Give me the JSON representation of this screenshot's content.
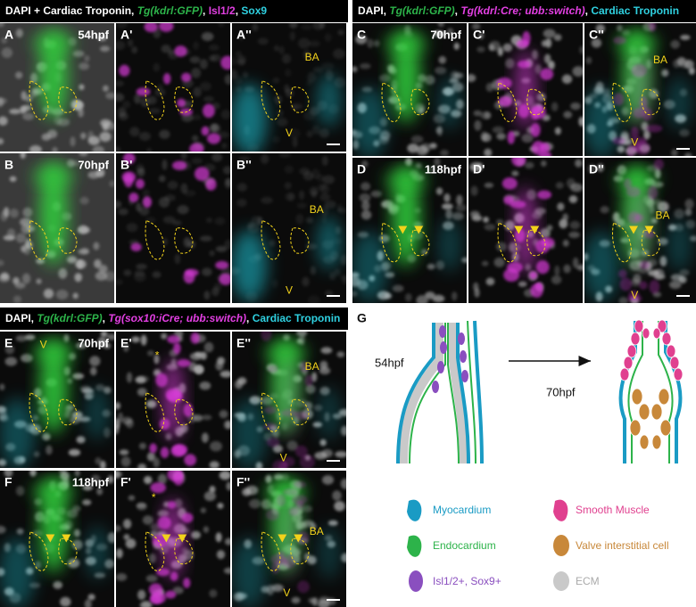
{
  "groups": [
    {
      "header": [
        "DAPI + Cardiac Troponin, ",
        "Tg(kdrl:GFP)",
        ", ",
        "Isl1/2",
        ", ",
        "Sox9"
      ],
      "panels": [
        {
          "label": "A",
          "time": "54hpf",
          "notes": []
        },
        {
          "label": "A'",
          "notes": []
        },
        {
          "label": "A''",
          "notes": [
            "BA",
            "V"
          ]
        },
        {
          "label": "B",
          "time": "70hpf",
          "notes": []
        },
        {
          "label": "B'",
          "notes": []
        },
        {
          "label": "B''",
          "notes": [
            "BA",
            "V"
          ]
        }
      ]
    },
    {
      "header": [
        "DAPI, ",
        "Tg(kdrl:GFP)",
        ", ",
        "Tg(kdrl:Cre; ubb:switch)",
        ", ",
        "Cardiac Troponin"
      ],
      "panels": [
        {
          "label": "C",
          "time": "70hpf",
          "notes": []
        },
        {
          "label": "C'",
          "notes": []
        },
        {
          "label": "C''",
          "notes": [
            "BA",
            "V"
          ]
        },
        {
          "label": "D",
          "time": "118hpf",
          "notes": []
        },
        {
          "label": "D'",
          "notes": []
        },
        {
          "label": "D''",
          "notes": [
            "BA",
            "V"
          ]
        }
      ]
    },
    {
      "header": [
        "DAPI, ",
        "Tg(kdrl:GFP)",
        ", ",
        "Tg(sox10:iCre; ubb:switch)",
        ", ",
        "Cardiac Troponin"
      ],
      "panels": [
        {
          "label": "E",
          "time": "70hpf",
          "notes": [
            "V"
          ]
        },
        {
          "label": "E'",
          "notes": [
            "*"
          ]
        },
        {
          "label": "E''",
          "notes": [
            "BA",
            "V"
          ]
        },
        {
          "label": "F",
          "time": "118hpf",
          "notes": []
        },
        {
          "label": "F'",
          "notes": [
            "*"
          ]
        },
        {
          "label": "F''",
          "notes": [
            "BA",
            "V"
          ]
        }
      ]
    }
  ],
  "schematic": {
    "label": "G",
    "stage_1": "54hpf",
    "stage_2": "70hpf",
    "legend": [
      "Myocardium",
      "Endocardium",
      "Isl1/2+, Sox9+",
      "Smooth Muscle",
      "Valve interstitial cell",
      "ECM"
    ]
  }
}
